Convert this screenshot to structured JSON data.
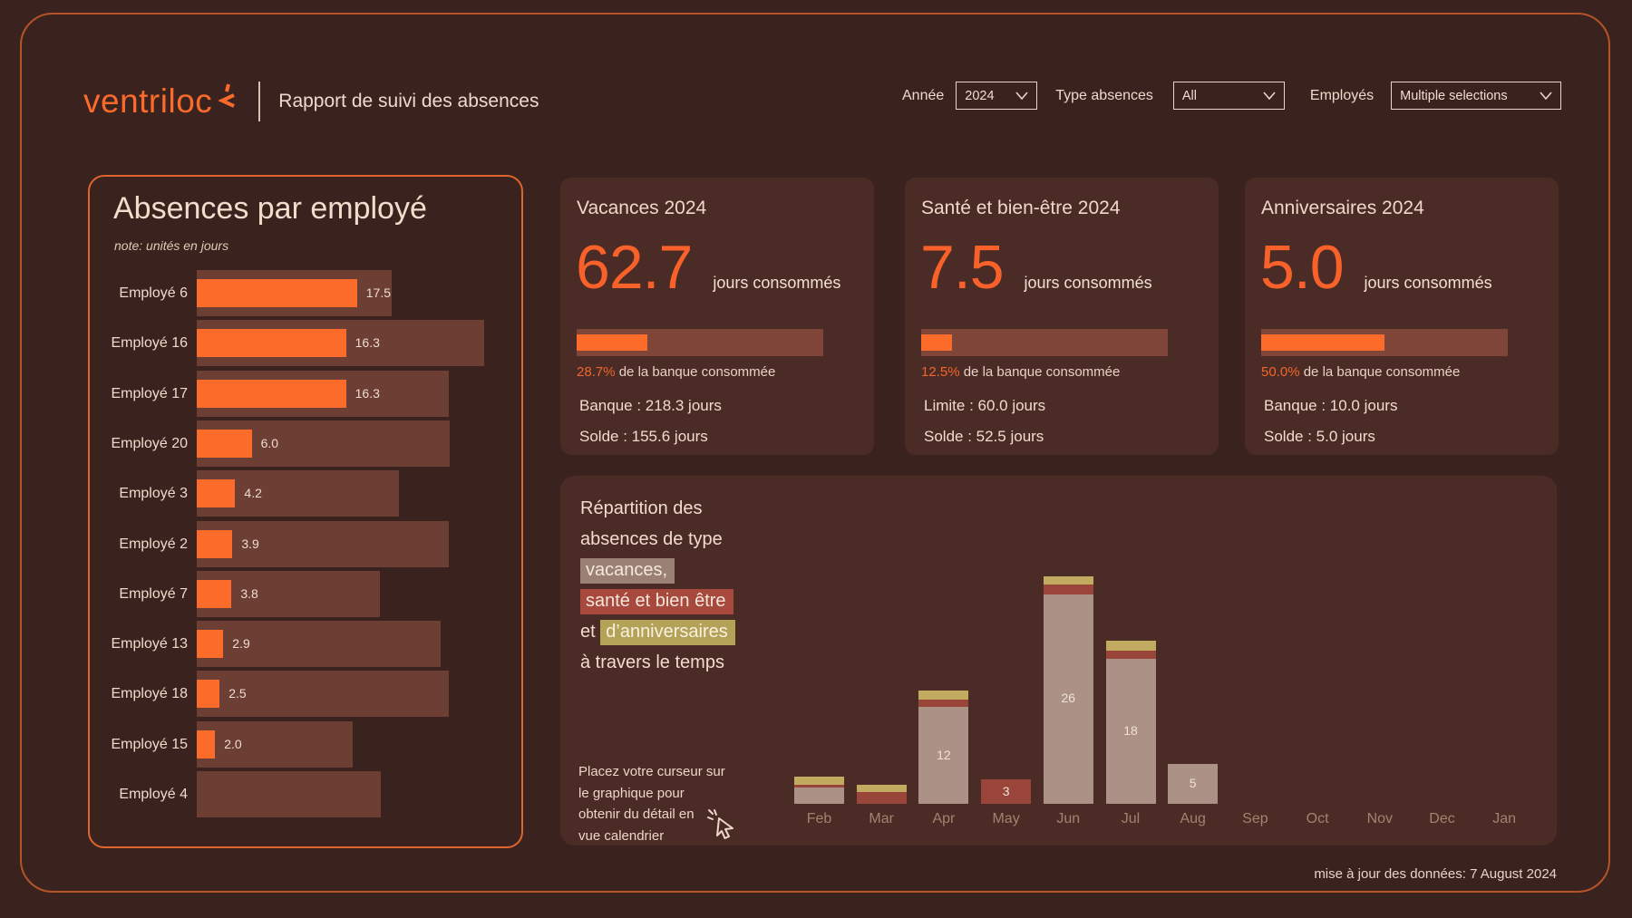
{
  "header": {
    "logo_text": "ventriloc",
    "title": "Rapport de suivi des absences",
    "filters": [
      {
        "label": "Année",
        "value": "2024"
      },
      {
        "label": "Type absences",
        "value": "All"
      },
      {
        "label": "Employés",
        "value": "Multiple selections"
      }
    ]
  },
  "employee_panel": {
    "title": "Absences par employé",
    "note": "note: unités en jours"
  },
  "kpis": [
    {
      "title": "Vacances 2024",
      "value": "62.7",
      "unit": "jours consommés",
      "pct": "28.7%",
      "pct_text": " de la banque consommée",
      "pct_value": 28.7,
      "line1": "Banque : 218.3 jours",
      "line2": "Solde : 155.6 jours"
    },
    {
      "title": "Santé et bien-être 2024",
      "value": "7.5",
      "unit": "jours consommés",
      "pct": "12.5%",
      "pct_text": " de la banque consommée",
      "pct_value": 12.5,
      "line1": "Limite : 60.0 jours",
      "line2": "Solde : 52.5 jours"
    },
    {
      "title": "Anniversaires 2024",
      "value": "5.0",
      "unit": "jours consommés",
      "pct": "50.0%",
      "pct_text": " de la banque consommée",
      "pct_value": 50.0,
      "line1": "Banque : 10.0 jours",
      "line2": "Solde : 5.0 jours"
    }
  ],
  "distribution_panel": {
    "line1": "Répartition des",
    "line2": "absences de type",
    "hl_vacances": "vacances,",
    "hl_sante": "santé et bien être",
    "et": "et ",
    "hl_anniv": "d’anniversaires",
    "line6": "à travers le temps",
    "hint_lines": [
      "Placez votre curseur sur",
      "le graphique pour",
      "obtenir du détail en",
      "vue calendrier"
    ]
  },
  "footer": {
    "updated": "mise à jour des données: 7 August 2024"
  },
  "colors": {
    "page_bg": "#3A231E",
    "card_bg": "#4A2B25",
    "accent_orange": "#FC6B2A",
    "frame_border": "#B5532A",
    "panel_border": "#DD662E",
    "cream_text": "#F0D8CB",
    "track_maroon": "#6C3E34",
    "kpi_track": "#7E4538",
    "vacances_taupe": "#AB9186",
    "sante_brick": "#99453A",
    "anniv_khaki": "#C2AB61"
  },
  "chart_data": [
    {
      "type": "bar",
      "orientation": "horizontal",
      "title": "Absences par employé",
      "unit": "jours",
      "categories": [
        "Employé 6",
        "Employé 16",
        "Employé 17",
        "Employé 20",
        "Employé 3",
        "Employé 2",
        "Employé 7",
        "Employé 13",
        "Employé 18",
        "Employé 15",
        "Employé 4"
      ],
      "values": [
        17.5,
        16.3,
        16.3,
        6.0,
        4.2,
        3.9,
        3.8,
        2.9,
        2.5,
        2.0,
        null
      ],
      "banque_estimee": [
        21.3,
        31.4,
        27.5,
        27.6,
        22.1,
        27.5,
        20.0,
        26.6,
        27.5,
        17.0,
        20.1
      ],
      "note": "orange = jours consommés (étiquetés), barre foncée = banque estimée (non étiquetée)"
    },
    {
      "type": "stacked-bar",
      "title": "Répartition des absences de type vacances, santé et bien être et d’anniversaires à travers le temps",
      "categories": [
        "Feb",
        "Mar",
        "Apr",
        "May",
        "Jun",
        "Jul",
        "Aug",
        "Sep",
        "Oct",
        "Nov",
        "Dec",
        "Jan"
      ],
      "series": [
        {
          "name": "vacances",
          "color": "#AB9186",
          "values": [
            2.0,
            0,
            12,
            0,
            26,
            18,
            5,
            0,
            0,
            0,
            0,
            0
          ]
        },
        {
          "name": "santé et bien être",
          "color": "#99453A",
          "values": [
            0.4,
            1.5,
            0.9,
            3,
            1.2,
            1.0,
            0,
            0,
            0,
            0,
            0,
            0
          ]
        },
        {
          "name": "d’anniversaires",
          "color": "#C2AB61",
          "values": [
            1.0,
            0.9,
            1.1,
            0,
            1.0,
            1.2,
            0,
            0,
            0,
            0,
            0,
            0
          ]
        }
      ],
      "bar_labels": [
        null,
        null,
        "12",
        "3",
        "26",
        "18",
        "5",
        null,
        null,
        null,
        null,
        null
      ],
      "legend_position": "left-text-block",
      "grid": false
    }
  ]
}
